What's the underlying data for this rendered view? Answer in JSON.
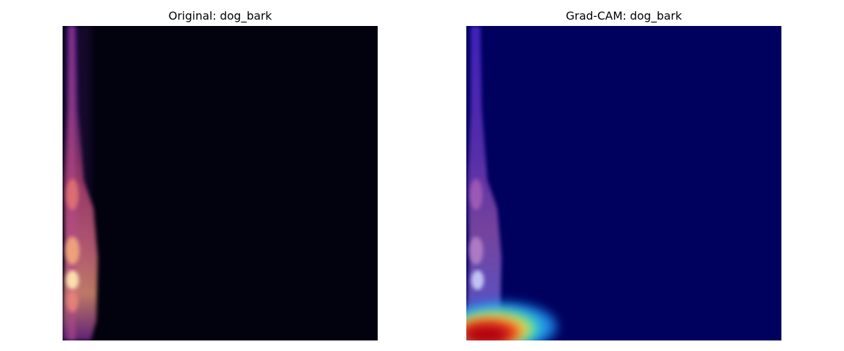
{
  "panels": [
    {
      "title": "Original: dog_bark",
      "colormap": "magma",
      "background_color": "#02020f"
    },
    {
      "title": "Grad-CAM: dog_bark",
      "colormap": "jet overlay",
      "background_color": "#00005f"
    }
  ]
}
